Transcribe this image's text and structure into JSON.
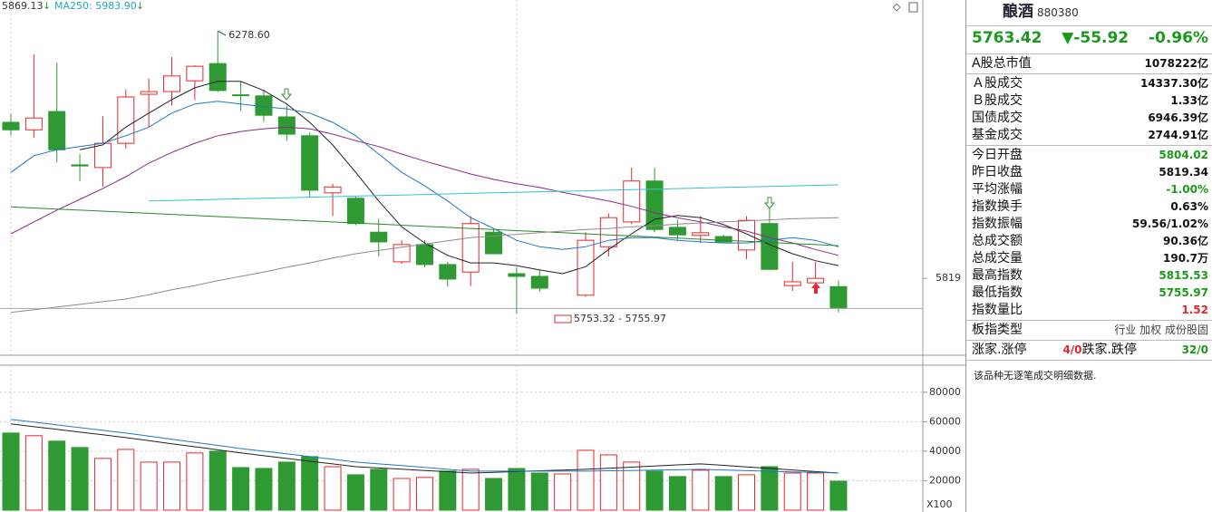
{
  "chart_data": [
    {
      "type": "candlestick",
      "header_labels": [
        "5869.13",
        "MA250: 5983.90"
      ],
      "annotations": [
        "6278.60",
        "5753.32 - 5755.97"
      ],
      "up_color": "#e8262b",
      "down_color": "#2f9a33",
      "open": [
        6109,
        6095,
        6129,
        6030,
        6025,
        6070,
        6161,
        6166,
        6186,
        6218,
        6160,
        6158,
        6119,
        6084,
        5978,
        5968,
        5905,
        5850,
        5882,
        5845,
        5831,
        5905,
        5828,
        5823,
        null,
        5788,
        5878,
        5924,
        6000,
        5914,
        5899,
        5897,
        5872,
        5921,
        5806,
        5811,
        5804.02
      ],
      "high": [
        6125,
        6235,
        6220,
        6050,
        6120,
        6170,
        6190,
        6230,
        6215,
        6278.6,
        6185,
        6170,
        6140,
        6090,
        5995,
        5972,
        5930,
        5890,
        5890,
        5850,
        5935,
        5910,
        5840,
        5835,
        null,
        5905,
        5940,
        6025,
        6025,
        5928,
        5935,
        5900,
        5935,
        5950,
        5850,
        5850,
        5815.53
      ],
      "low": [
        6085,
        6080,
        6035,
        6000,
        5990,
        6060,
        6100,
        6140,
        6150,
        6165,
        6130,
        6110,
        6075,
        5970,
        5935,
        5918,
        5860,
        5846,
        5840,
        5804,
        5805,
        5865,
        5753.32,
        5795,
        null,
        5785,
        5860,
        5920,
        5905,
        5890,
        5885,
        5885,
        5855,
        5835,
        5796,
        5805,
        5755.97
      ],
      "close": [
        6095,
        6117,
        6058,
        6028,
        6070,
        6156,
        6166,
        6195,
        6213,
        6168,
        6159,
        6122,
        6087,
        5983,
        5989,
        5921,
        5887,
        5882,
        5845,
        5818,
        5921,
        5865,
        5823,
        5801,
        null,
        5890,
        5932,
        6000,
        5910,
        5900,
        5904,
        5887,
        5927,
        5836,
        5813,
        5819.34,
        5763.42
      ],
      "series": [
        {
          "color": "#222222",
          "values": [
            null,
            null,
            null,
            6058,
            6067,
            6100,
            6126,
            6151,
            6173,
            6185,
            6185,
            6168,
            6143,
            6109,
            6067,
            6016,
            5963,
            5915,
            5885,
            5862,
            5848,
            5848,
            5843,
            5835,
            5828,
            5841,
            5873,
            5902,
            5929,
            5936,
            5932,
            5919,
            5902,
            5882,
            5865,
            5852,
            5843
          ]
        },
        {
          "color": "#1e78c8",
          "values": [
            6016,
            6047,
            6058,
            6064,
            6070,
            6084,
            6100,
            6126,
            6143,
            6148,
            6143,
            6138,
            6134,
            6126,
            6109,
            6084,
            6050,
            6016,
            5991,
            5963,
            5932,
            5912,
            5890,
            5878,
            5873,
            5878,
            5890,
            5895,
            5895,
            5890,
            5887,
            5885,
            5885,
            5890,
            5895,
            5890,
            5878
          ]
        },
        {
          "color": "#8a2a8a",
          "values": [
            5902,
            5924,
            5946,
            5966,
            5986,
            6008,
            6033,
            6053,
            6070,
            6084,
            6092,
            6097,
            6100,
            6097,
            6087,
            6075,
            6064,
            6050,
            6037,
            6025,
            6013,
            6003,
            5995,
            5988,
            5979,
            5971,
            5963,
            5953,
            5941,
            5932,
            5924,
            5915,
            5907,
            5895,
            5885,
            5873,
            5862
          ]
        },
        {
          "color": "#2a8a2a",
          "values": [
            5952,
            5950,
            5948,
            5946,
            5944,
            5942,
            5940,
            5938,
            5936,
            5934,
            5932,
            5930,
            5928,
            5926,
            5924,
            5922,
            5920,
            5918,
            5916,
            5914,
            5912,
            5910,
            5908,
            5906,
            5904,
            5902,
            5900,
            5898,
            5896,
            5894,
            5892,
            5890,
            5888,
            5886,
            5884,
            5882,
            5880
          ]
        },
        {
          "color": "#33c4d4",
          "values": [
            null,
            null,
            null,
            null,
            null,
            null,
            5963,
            5964,
            5965,
            5966,
            5967,
            5968,
            5969,
            5970,
            5971,
            5972,
            5973,
            5974,
            5975,
            5976,
            5977,
            5978,
            5979,
            5980,
            5981,
            5982,
            5983,
            5984,
            5985,
            5986,
            5987,
            5988,
            5989,
            5990,
            5991,
            5992,
            5993
          ]
        },
        {
          "color": "#8c8c8c",
          "values": [
            5756,
            5761,
            5766,
            5771,
            5776,
            5781,
            5789,
            5798,
            5806,
            5815,
            5823,
            5831,
            5840,
            5848,
            5857,
            5865,
            5871,
            5877,
            5883,
            5889,
            5895,
            5898,
            5901,
            5904,
            5907,
            5910,
            5912,
            5915,
            5917,
            5920,
            5922,
            5924,
            5926,
            5928,
            5930,
            5931,
            5932
          ]
        }
      ],
      "ylim": [
        5680,
        6336
      ],
      "yticks": [
        {
          "value": 5819.34,
          "label": "5819"
        }
      ]
    },
    {
      "type": "bar",
      "unit_label": "X100",
      "up_color": "#e8262b",
      "down_color": "#2f9a33",
      "values": [
        52300,
        50500,
        46800,
        42500,
        35100,
        41200,
        32600,
        32600,
        38800,
        40000,
        28900,
        28300,
        32600,
        36300,
        29500,
        24000,
        27700,
        21500,
        22200,
        26500,
        27700,
        21500,
        28300,
        25200,
        24600,
        40600,
        37500,
        32600,
        26500,
        22800,
        27100,
        22800,
        24000,
        29500,
        25200,
        25200,
        19700
      ],
      "colors": [
        "#2f9a33",
        "#e8262b",
        "#2f9a33",
        "#2f9a33",
        "#e8262b",
        "#e8262b",
        "#e8262b",
        "#e8262b",
        "#e8262b",
        "#2f9a33",
        "#2f9a33",
        "#2f9a33",
        "#2f9a33",
        "#2f9a33",
        "#e8262b",
        "#2f9a33",
        "#2f9a33",
        "#e8262b",
        "#e8262b",
        "#2f9a33",
        "#e8262b",
        "#2f9a33",
        "#2f9a33",
        "#2f9a33",
        "#e8262b",
        "#e8262b",
        "#e8262b",
        "#e8262b",
        "#2f9a33",
        "#2f9a33",
        "#e8262b",
        "#2f9a33",
        "#e8262b",
        "#2f9a33",
        "#e8262b",
        "#e8262b",
        "#2f9a33"
      ],
      "series": [
        {
          "color": "#222222",
          "values": [
            58500,
            56600,
            54800,
            52900,
            51100,
            49200,
            47100,
            45000,
            43000,
            40900,
            38800,
            36900,
            35100,
            33200,
            31400,
            29500,
            28600,
            27800,
            26900,
            26100,
            25200,
            25700,
            26200,
            26700,
            27200,
            27700,
            28400,
            29200,
            29900,
            30700,
            31400,
            30400,
            29300,
            28300,
            27300,
            26200,
            25200
          ]
        },
        {
          "color": "#1e78c8",
          "values": [
            61500,
            59700,
            57800,
            56000,
            54100,
            52300,
            50200,
            48100,
            46000,
            43900,
            41800,
            40000,
            38200,
            36300,
            34500,
            32600,
            31400,
            30200,
            29000,
            27700,
            26500,
            26500,
            26500,
            26500,
            26500,
            26500,
            26700,
            26900,
            27200,
            27400,
            27700,
            27300,
            26800,
            26400,
            26000,
            25600,
            25200
          ]
        }
      ],
      "ylim": [
        0,
        94000
      ],
      "yticks": [
        20000,
        40000,
        60000,
        80000
      ]
    }
  ],
  "panel": {
    "name": "酿酒",
    "code": "880380",
    "price": "5763.42",
    "change": "▼-55.92",
    "change_pct": "-0.96%",
    "groups": [
      [
        {
          "label": "A股总市值",
          "value": "1078222亿"
        }
      ],
      [
        {
          "label": "Ａ股成交",
          "value": "14337.30亿"
        },
        {
          "label": "Ｂ股成交",
          "value": "1.33亿"
        },
        {
          "label": "国债成交",
          "value": "6946.39亿"
        },
        {
          "label": "基金成交",
          "value": "2744.91亿"
        }
      ],
      [
        {
          "label": "今日开盘",
          "value": "5804.02",
          "color": "#1a9a1a"
        },
        {
          "label": "昨日收盘",
          "value": "5819.34"
        },
        {
          "label": "平均涨幅",
          "value": "-1.00%",
          "color": "#1a9a1a"
        },
        {
          "label": "指数换手",
          "value": "0.63%"
        },
        {
          "label": "指数振幅",
          "value": "59.56/1.02%"
        },
        {
          "label": "总成交额",
          "value": "90.36亿"
        },
        {
          "label": "总成交量",
          "value": "190.7万"
        },
        {
          "label": "最高指数",
          "value": "5815.53",
          "color": "#1a9a1a"
        },
        {
          "label": "最低指数",
          "value": "5755.97",
          "color": "#1a9a1a"
        },
        {
          "label": "指数量比",
          "value": "1.52",
          "color": "#e8262b"
        }
      ],
      [
        {
          "label": "板指类型",
          "value": "行业 加权 成份股固",
          "color": "#444444"
        }
      ]
    ],
    "breadth": {
      "up_label": "涨家.涨停",
      "up_value": "4/0",
      "down_label": "跌家.跌停",
      "down_value": "32/0"
    },
    "note": "该品种无逐笔成交明细数据."
  }
}
